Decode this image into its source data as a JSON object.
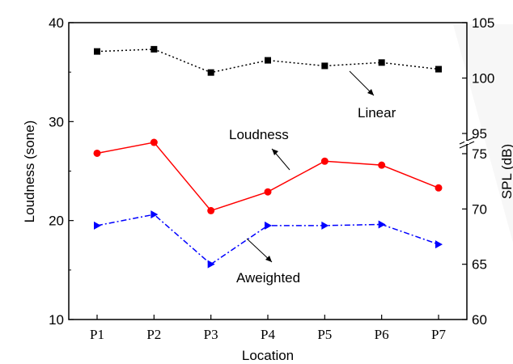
{
  "chart_data": {
    "type": "line",
    "title": "",
    "xlabel": "Location",
    "ylabel_left": "Loudness (sone)",
    "ylabel_right": "SPL (dB)",
    "categories": [
      "P1",
      "P2",
      "P3",
      "P4",
      "P5",
      "P6",
      "P7"
    ],
    "left_axis": {
      "ylim": [
        10,
        40
      ],
      "ticks": [
        "10",
        "20",
        "30",
        "40"
      ]
    },
    "right_axis": {
      "broken": true,
      "lower_range": [
        60,
        75
      ],
      "upper_range": [
        95,
        105
      ],
      "ticks": [
        "60",
        "65",
        "70",
        "75",
        "95",
        "100",
        "105"
      ]
    },
    "series": [
      {
        "name": "Linear",
        "axis": "right",
        "unit": "dB",
        "values": [
          102.4,
          102.6,
          100.5,
          101.6,
          101.1,
          101.4,
          100.8
        ],
        "color": "#000000",
        "line_style": "dotted",
        "marker": "square"
      },
      {
        "name": "Loudness",
        "axis": "left",
        "unit": "sone",
        "values": [
          26.8,
          27.9,
          21.0,
          22.9,
          26.0,
          25.6,
          23.3
        ],
        "color": "#ff0000",
        "line_style": "solid",
        "marker": "circle"
      },
      {
        "name": "Aweighted",
        "axis": "right",
        "unit": "dB",
        "values": [
          68.5,
          69.5,
          65.0,
          68.5,
          68.5,
          68.6,
          66.8
        ],
        "color": "#0000ff",
        "line_style": "dash-dot",
        "marker": "triangle-right"
      }
    ],
    "annotations": [
      {
        "text": "Linear",
        "target_series": "Linear"
      },
      {
        "text": "Loudness",
        "target_series": "Loudness"
      },
      {
        "text": "Aweighted",
        "target_series": "Aweighted"
      }
    ],
    "grid": false,
    "legend": "none"
  }
}
